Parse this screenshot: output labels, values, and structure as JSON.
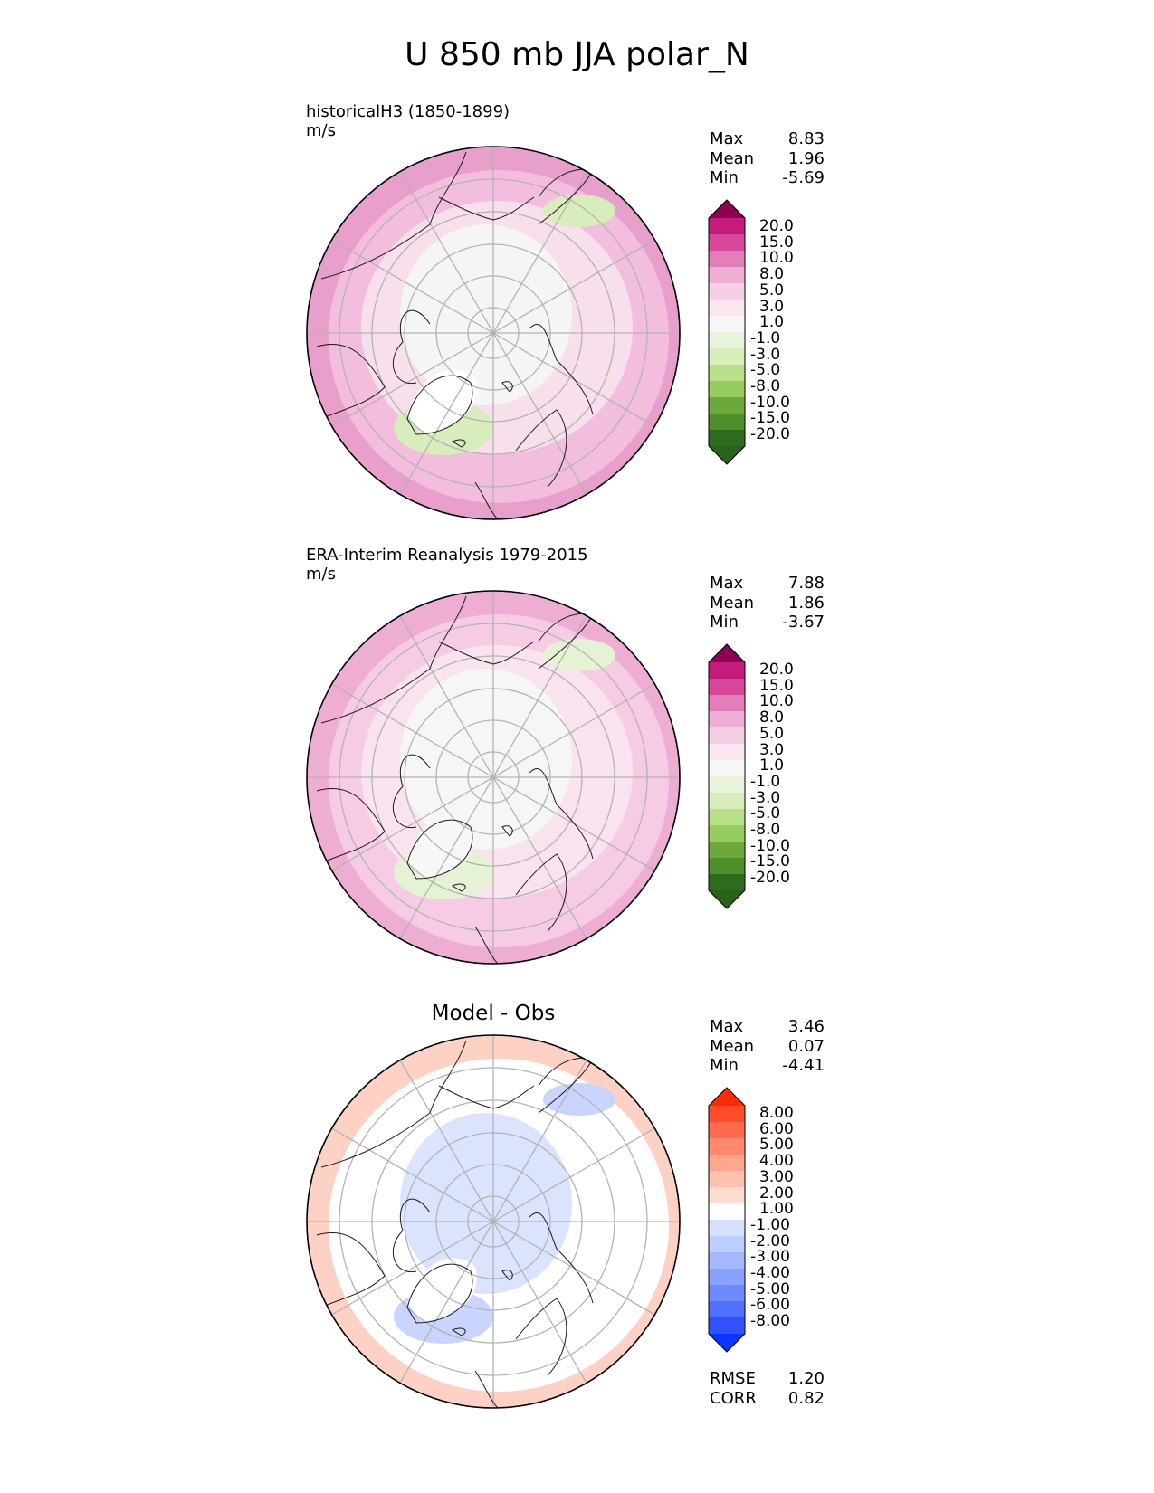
{
  "title": "U 850 mb JJA polar_N",
  "panels": [
    {
      "label_line1": "historicalH3 (1850-1899)",
      "label_line2": "m/s",
      "stats": [
        {
          "name": "Max",
          "value": "8.83"
        },
        {
          "name": "Mean",
          "value": "1.96"
        },
        {
          "name": "Min",
          "value": "-5.69"
        }
      ],
      "colorbar": {
        "ticks": [
          "20.0",
          "15.0",
          "10.0",
          "8.0",
          "5.0",
          "3.0",
          "1.0",
          "-1.0",
          "-3.0",
          "-5.0",
          "-8.0",
          "-10.0",
          "-15.0",
          "-20.0"
        ],
        "colors": [
          "#8e0152",
          "#c51b7d",
          "#d6479a",
          "#e27fb8",
          "#efaed5",
          "#f5cfe6",
          "#fae6f1",
          "#f7f7f7",
          "#ebf4dc",
          "#d7edba",
          "#b8e086",
          "#94cc5d",
          "#6ea83a",
          "#4d8f2a",
          "#2f6b1f",
          "#276419"
        ]
      },
      "palette": {
        "base": "#f3bedd",
        "outer": "#e89fcb",
        "ring": "#f8dfec",
        "inner": "#f5f5f3",
        "green": "#d8ecbc",
        "white": "#ffffff"
      }
    },
    {
      "label_line1": "ERA-Interim Reanalysis 1979-2015",
      "label_line2": "m/s",
      "stats": [
        {
          "name": "Max",
          "value": "7.88"
        },
        {
          "name": "Mean",
          "value": "1.86"
        },
        {
          "name": "Min",
          "value": "-3.67"
        }
      ],
      "colorbar": {
        "ticks": [
          "20.0",
          "15.0",
          "10.0",
          "8.0",
          "5.0",
          "3.0",
          "1.0",
          "-1.0",
          "-3.0",
          "-5.0",
          "-8.0",
          "-10.0",
          "-15.0",
          "-20.0"
        ],
        "colors": [
          "#8e0152",
          "#c51b7d",
          "#d6479a",
          "#e27fb8",
          "#efaed5",
          "#f5cfe6",
          "#fae6f1",
          "#f7f7f7",
          "#ebf4dc",
          "#d7edba",
          "#b8e086",
          "#94cc5d",
          "#6ea83a",
          "#4d8f2a",
          "#2f6b1f",
          "#276419"
        ]
      },
      "palette": {
        "base": "#f5cce4",
        "outer": "#eeadd3",
        "ring": "#f9e3ef",
        "inner": "#f6f6f4",
        "green": "#e6f2d4",
        "white": "#f7f7f7"
      }
    },
    {
      "center_title": "Model - Obs",
      "stats": [
        {
          "name": "Max",
          "value": "3.46"
        },
        {
          "name": "Mean",
          "value": "0.07"
        },
        {
          "name": "Min",
          "value": "-4.41"
        }
      ],
      "extra_stats": [
        {
          "name": "RMSE",
          "value": "1.20"
        },
        {
          "name": "CORR",
          "value": "0.82"
        }
      ],
      "colorbar": {
        "ticks": [
          "8.00",
          "6.00",
          "5.00",
          "4.00",
          "3.00",
          "2.00",
          "1.00",
          "-1.00",
          "-2.00",
          "-3.00",
          "-4.00",
          "-5.00",
          "-6.00",
          "-8.00"
        ],
        "colors": [
          "#ff2a00",
          "#ff4d2a",
          "#ff6b4c",
          "#ff8a6f",
          "#ffa68f",
          "#ffc2b0",
          "#ffdcd0",
          "#ffffff",
          "#d6e0ff",
          "#bccdff",
          "#a3b8ff",
          "#8aa2ff",
          "#6e88ff",
          "#5070ff",
          "#3352ff",
          "#0a34ff"
        ]
      },
      "palette": {
        "base": "#ffffff",
        "outer": "#fdd2c4",
        "ring": "#ffffff",
        "inner": "#dbe3ff",
        "green": "#c9d5ff",
        "white": "#ffffff"
      }
    }
  ]
}
